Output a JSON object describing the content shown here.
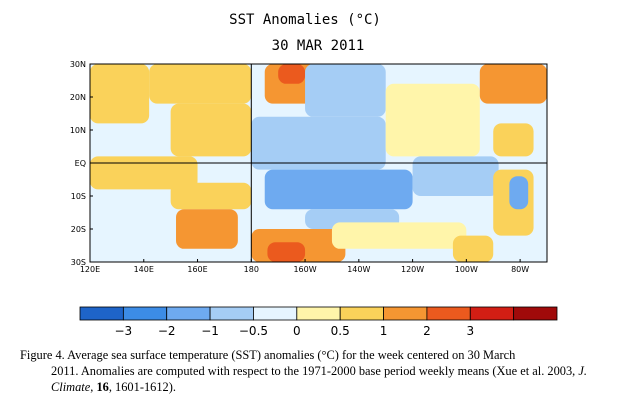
{
  "chart_data": {
    "type": "heatmap",
    "title": "SST Anomalies (°C)",
    "subtitle": "30 MAR 2011",
    "x_ticks": [
      "120E",
      "140E",
      "160E",
      "180",
      "160W",
      "140W",
      "120W",
      "100W",
      "80W"
    ],
    "y_ticks": [
      "30N",
      "20N",
      "10N",
      "EQ",
      "10S",
      "20S",
      "30S"
    ],
    "xlim": [
      "120E",
      "70W"
    ],
    "ylim": [
      "30S",
      "30N"
    ],
    "colorbar": {
      "tick_labels": [
        "−3",
        "−2",
        "−1",
        "−0.5",
        "0",
        "0.5",
        "1",
        "2",
        "3"
      ],
      "colors": [
        "#1e64c8",
        "#3c8ce6",
        "#6eaaf0",
        "#a5cdf5",
        "#e6f5ff",
        "#fff5aa",
        "#fad25a",
        "#f59632",
        "#eb5a1e",
        "#d21e14",
        "#a00a0a"
      ]
    },
    "anomaly_regions": [
      {
        "lon": [
          120,
          142
        ],
        "lat": [
          12,
          30
        ],
        "anomaly": 0.75
      },
      {
        "lon": [
          142,
          180
        ],
        "lat": [
          18,
          30
        ],
        "anomaly": 0.75
      },
      {
        "lon": [
          185,
          215
        ],
        "lat": [
          18,
          30
        ],
        "anomaly": 1.5
      },
      {
        "lon": [
          190,
          200
        ],
        "lat": [
          24,
          30
        ],
        "anomaly": 2.5
      },
      {
        "lon": [
          150,
          180
        ],
        "lat": [
          2,
          18
        ],
        "anomaly": 0.75
      },
      {
        "lon": [
          180,
          230
        ],
        "lat": [
          -2,
          14
        ],
        "anomaly": -0.75
      },
      {
        "lon": [
          200,
          230
        ],
        "lat": [
          14,
          30
        ],
        "anomaly": -0.75
      },
      {
        "lon": [
          230,
          265
        ],
        "lat": [
          2,
          24
        ],
        "anomaly": 0.25
      },
      {
        "lon": [
          265,
          290
        ],
        "lat": [
          18,
          30
        ],
        "anomaly": 1.5
      },
      {
        "lon": [
          270,
          285
        ],
        "lat": [
          2,
          12
        ],
        "anomaly": 0.75
      },
      {
        "lon": [
          185,
          240
        ],
        "lat": [
          -14,
          -2
        ],
        "anomaly": -1.25
      },
      {
        "lon": [
          200,
          235
        ],
        "lat": [
          -20,
          -14
        ],
        "anomaly": -0.75
      },
      {
        "lon": [
          240,
          272
        ],
        "lat": [
          -10,
          2
        ],
        "anomaly": -0.75
      },
      {
        "lon": [
          270,
          285
        ],
        "lat": [
          -22,
          -2
        ],
        "anomaly": 0.75
      },
      {
        "lon": [
          276,
          283
        ],
        "lat": [
          -14,
          -4
        ],
        "anomaly": -1.5
      },
      {
        "lon": [
          120,
          160
        ],
        "lat": [
          -8,
          2
        ],
        "anomaly": 0.75
      },
      {
        "lon": [
          150,
          180
        ],
        "lat": [
          -14,
          -6
        ],
        "anomaly": 0.75
      },
      {
        "lon": [
          152,
          175
        ],
        "lat": [
          -26,
          -14
        ],
        "anomaly": 1.5
      },
      {
        "lon": [
          180,
          215
        ],
        "lat": [
          -30,
          -20
        ],
        "anomaly": 1.5
      },
      {
        "lon": [
          186,
          200
        ],
        "lat": [
          -30,
          -24
        ],
        "anomaly": 2.5
      },
      {
        "lon": [
          210,
          260
        ],
        "lat": [
          -26,
          -18
        ],
        "anomaly": 0.25
      },
      {
        "lon": [
          255,
          270
        ],
        "lat": [
          -30,
          -22
        ],
        "anomaly": 0.75
      }
    ]
  },
  "caption": {
    "line1": "Figure 4. Average sea surface temperature (SST) anomalies (°C) for the week centered on 30 March",
    "line2a": "2011.   Anomalies are computed with respect to the 1971-2000 base period weekly means (Xue et al. 2003, ",
    "journal": "J. Climate",
    "sep": ", ",
    "volume": "16",
    "pages": ", 1601-1612)."
  }
}
